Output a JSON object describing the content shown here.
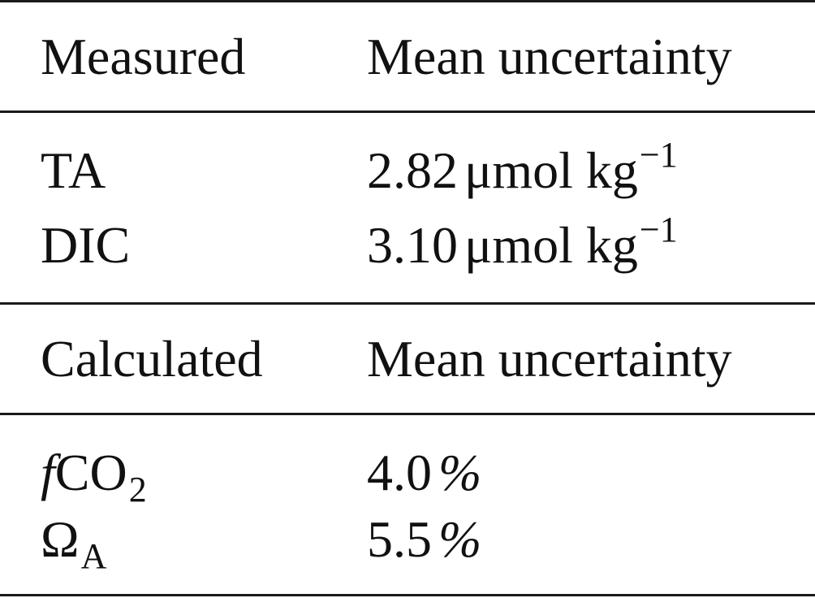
{
  "table": {
    "section1": {
      "header": {
        "col1": "Measured",
        "col2": "Mean uncertainty"
      },
      "rows": [
        {
          "name": "TA",
          "value": "2.82",
          "unit": "μmol kg",
          "exp": "−1"
        },
        {
          "name": "DIC",
          "value": "3.10",
          "unit": "μmol kg",
          "exp": "−1"
        }
      ]
    },
    "section2": {
      "header": {
        "col1": "Calculated",
        "col2": "Mean uncertainty"
      },
      "rows": [
        {
          "name_prefix": "f",
          "name": "CO",
          "name_sub": "2",
          "value": "4.0",
          "unit": "%"
        },
        {
          "name": "Ω",
          "name_sub": "A",
          "value": "5.5",
          "unit": "%"
        }
      ]
    }
  }
}
